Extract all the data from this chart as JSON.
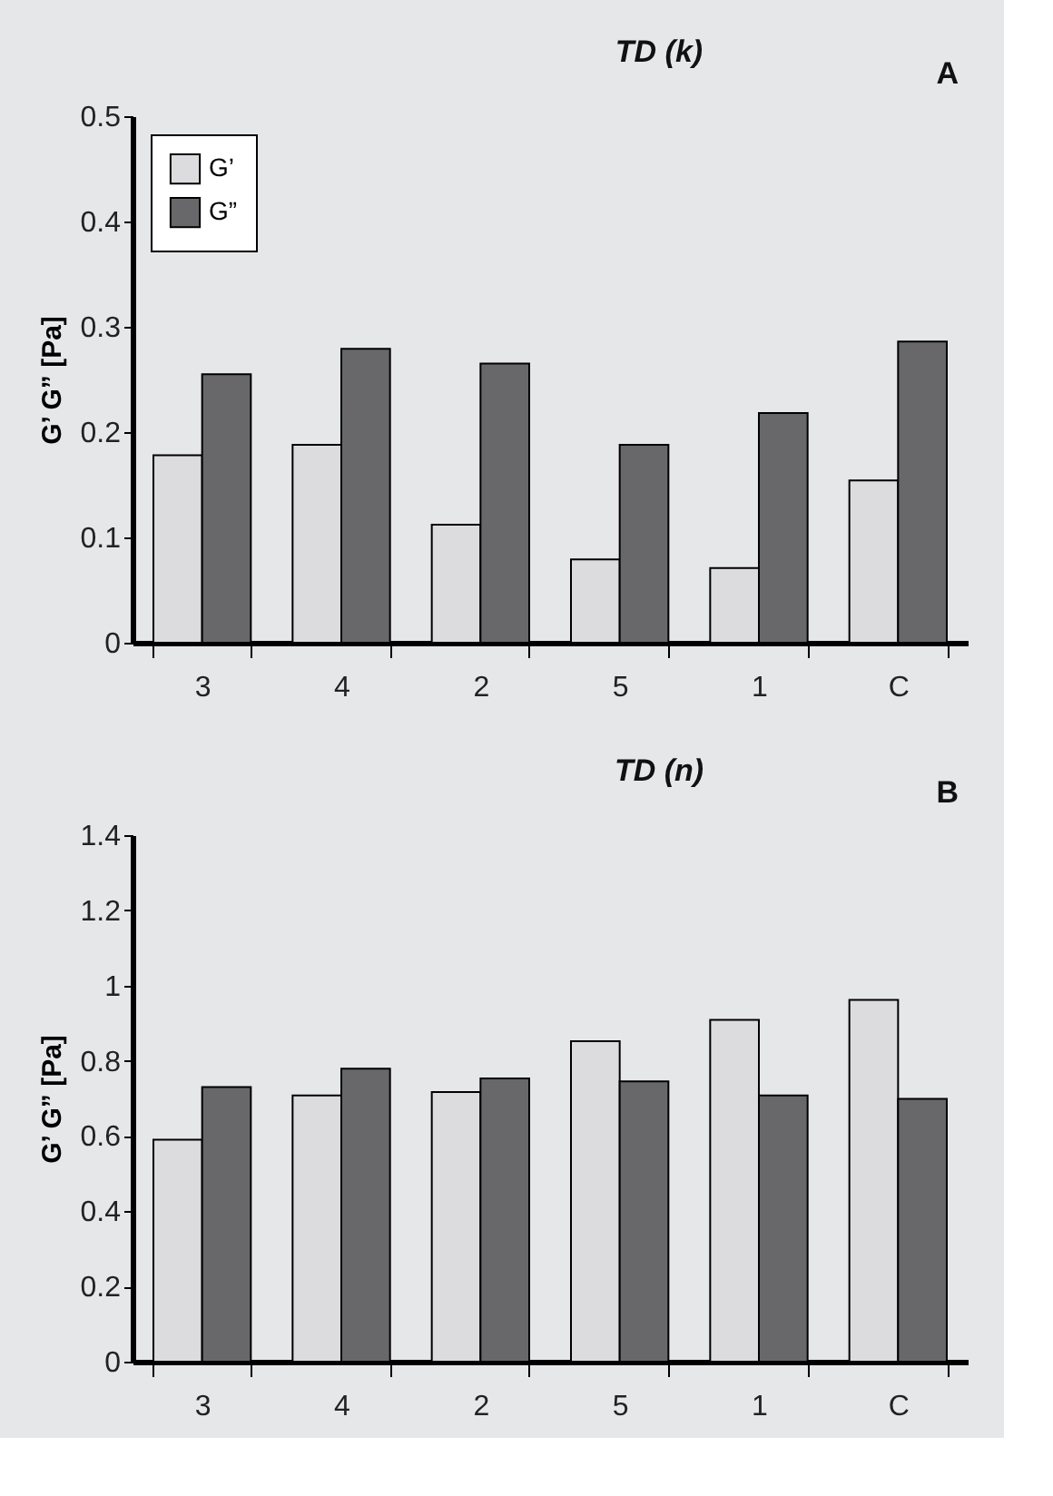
{
  "chart_data": [
    {
      "type": "bar",
      "title": "TD (k)",
      "annotations": [
        "A"
      ],
      "ylabel": "G’ G” [Pa]",
      "categories": [
        "3",
        "4",
        "2",
        "5",
        "1",
        "C"
      ],
      "series": [
        {
          "name": "G’",
          "color": "#dcdcdf",
          "values": [
            0.178,
            0.188,
            0.112,
            0.079,
            0.071,
            0.154
          ]
        },
        {
          "name": "G”",
          "color": "#68686b",
          "values": [
            0.255,
            0.279,
            0.265,
            0.188,
            0.218,
            0.286
          ]
        }
      ],
      "ylim": [
        0,
        0.5
      ],
      "yticks": [
        0,
        0.1,
        0.2,
        0.3,
        0.4,
        0.5
      ],
      "grid": false,
      "legend": "top left"
    },
    {
      "type": "bar",
      "title": "TD (n)",
      "annotations": [
        "B"
      ],
      "ylabel": "G’ G” [Pa]",
      "categories": [
        "3",
        "4",
        "2",
        "5",
        "1",
        "C"
      ],
      "series": [
        {
          "name": "G’",
          "color": "#dcdcdf",
          "values": [
            0.59,
            0.708,
            0.717,
            0.852,
            0.909,
            0.962
          ]
        },
        {
          "name": "G”",
          "color": "#68686b",
          "values": [
            0.73,
            0.779,
            0.753,
            0.745,
            0.708,
            0.699
          ]
        }
      ],
      "ylim": [
        0,
        1.4
      ],
      "yticks": [
        0,
        0.2,
        0.4,
        0.6,
        0.8,
        1,
        1.2,
        1.4
      ],
      "grid": false,
      "legend": "top left"
    }
  ]
}
